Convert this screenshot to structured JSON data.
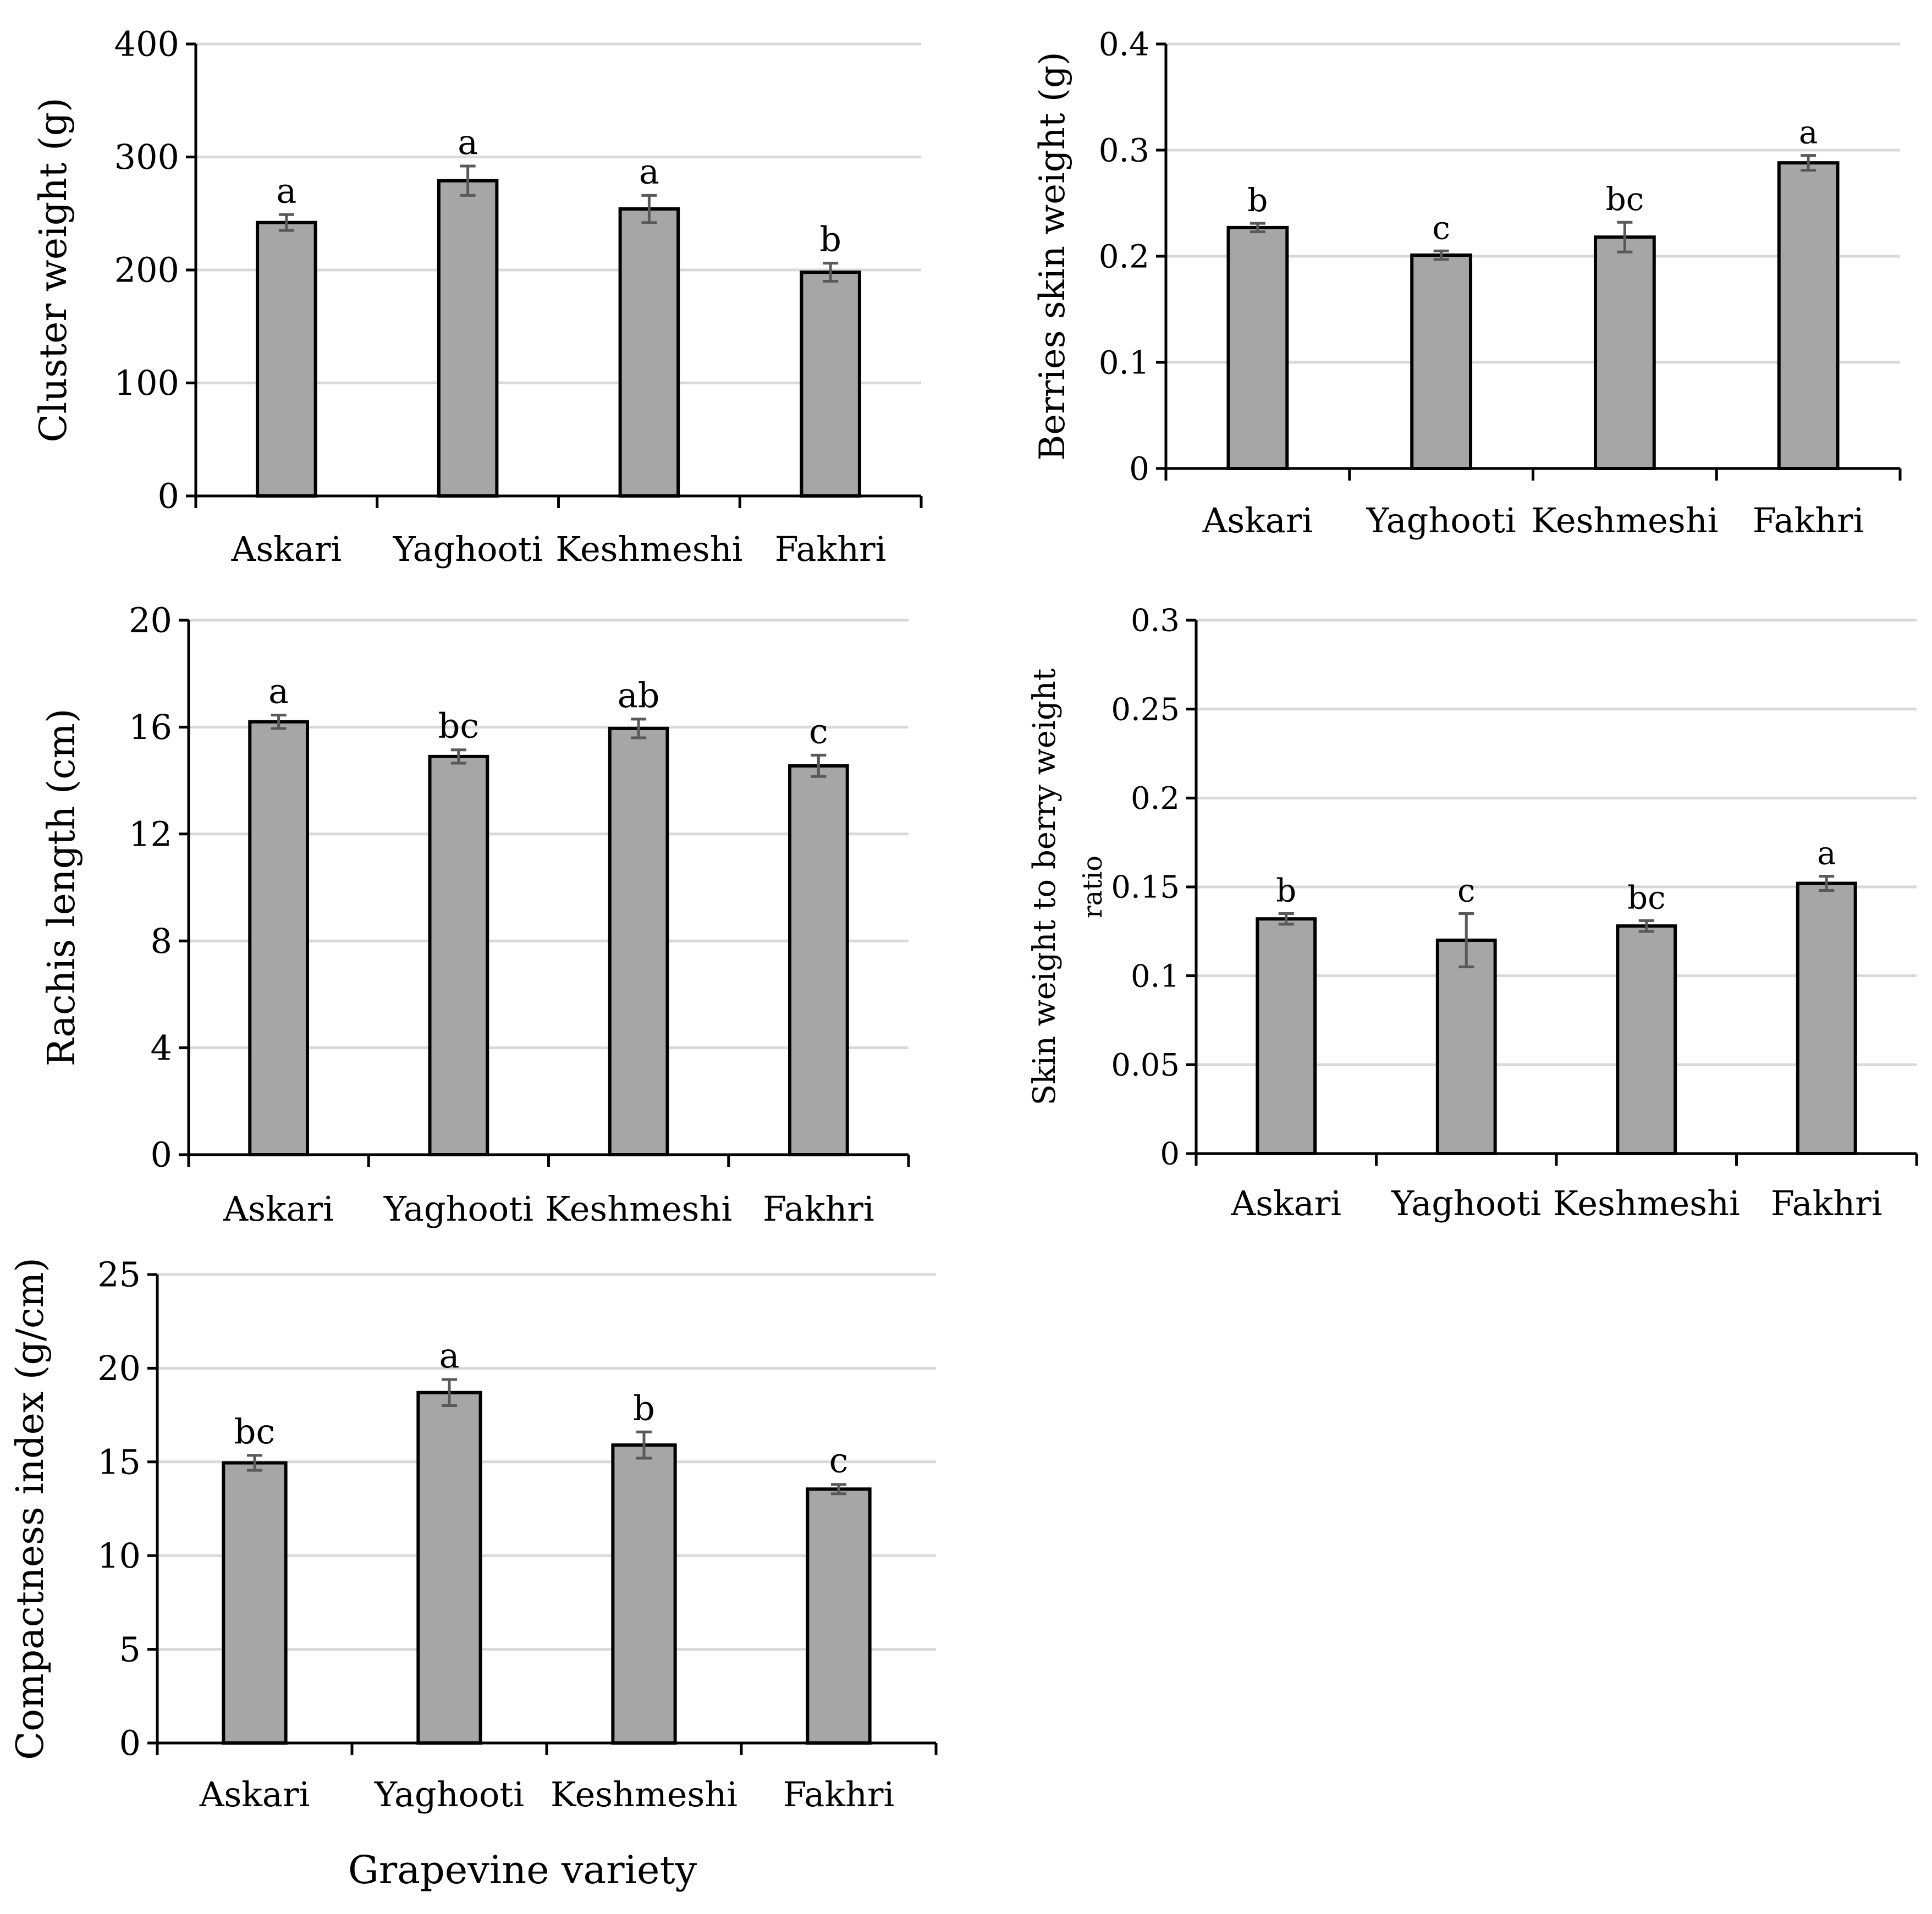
{
  "colors": {
    "bar_fill": "#a6a6a6",
    "bar_stroke": "#000000",
    "grid": "#d9d9d9",
    "error_bar": "#595959",
    "axis": "#000000"
  },
  "figure": {
    "xlabel": "Grapevine variety"
  },
  "chart_data": [
    {
      "id": "cluster-weight",
      "type": "bar",
      "title": "",
      "xlabel": "",
      "ylabel": "Cluster weight (g)",
      "categories": [
        "Askari",
        "Yaghooti",
        "Keshmeshi",
        "Fakhri"
      ],
      "values": [
        242,
        279,
        254,
        198
      ],
      "errors": [
        7,
        13,
        12,
        8
      ],
      "letters": [
        "a",
        "a",
        "a",
        "b"
      ],
      "ylim": [
        0,
        400
      ],
      "yticks": [
        0,
        100,
        200,
        300,
        400
      ],
      "ytick_labels": [
        "0",
        "100",
        "200",
        "300",
        "400"
      ],
      "grid": true
    },
    {
      "id": "berries-skin-weight",
      "type": "bar",
      "title": "",
      "xlabel": "",
      "ylabel": "Berries skin weight (g)",
      "categories": [
        "Askari",
        "Yaghooti",
        "Keshmeshi",
        "Fakhri"
      ],
      "values": [
        0.227,
        0.201,
        0.218,
        0.288
      ],
      "errors": [
        0.004,
        0.004,
        0.014,
        0.007
      ],
      "letters": [
        "b",
        "c",
        "bc",
        "a"
      ],
      "ylim": [
        0,
        0.4
      ],
      "yticks": [
        0,
        0.1,
        0.2,
        0.3,
        0.4
      ],
      "ytick_labels": [
        "0",
        "0.1",
        "0.2",
        "0.3",
        "0.4"
      ],
      "grid": true
    },
    {
      "id": "rachis-length",
      "type": "bar",
      "title": "",
      "xlabel": "",
      "ylabel": "Rachis length (cm)",
      "categories": [
        "Askari",
        "Yaghooti",
        "Keshmeshi",
        "Fakhri"
      ],
      "values": [
        16.2,
        14.9,
        15.95,
        14.55
      ],
      "errors": [
        0.25,
        0.25,
        0.35,
        0.4
      ],
      "letters": [
        "a",
        "bc",
        "ab",
        "c"
      ],
      "ylim": [
        0,
        20
      ],
      "yticks": [
        0,
        4,
        8,
        12,
        16,
        20
      ],
      "ytick_labels": [
        "0",
        "4",
        "8",
        "12",
        "16",
        "20"
      ],
      "grid": true
    },
    {
      "id": "skin-to-berry-ratio",
      "type": "bar",
      "title": "",
      "xlabel": "",
      "ylabel": [
        "Skin weight to berry weight",
        "ratio"
      ],
      "categories": [
        "Askari",
        "Yaghooti",
        "Keshmeshi",
        "Fakhri"
      ],
      "values": [
        0.132,
        0.12,
        0.128,
        0.152
      ],
      "errors": [
        0.003,
        0.015,
        0.003,
        0.004
      ],
      "letters": [
        "b",
        "c",
        "bc",
        "a"
      ],
      "ylim": [
        0,
        0.3
      ],
      "yticks": [
        0,
        0.05,
        0.1,
        0.15,
        0.2,
        0.25,
        0.3
      ],
      "ytick_labels": [
        "0",
        "0.05",
        "0.1",
        "0.15",
        "0.2",
        "0.25",
        "0.3"
      ],
      "grid": true
    },
    {
      "id": "compactness-index",
      "type": "bar",
      "title": "",
      "xlabel": "Grapevine variety",
      "ylabel": "Compactness index (g/cm)",
      "categories": [
        "Askari",
        "Yaghooti",
        "Keshmeshi",
        "Fakhri"
      ],
      "values": [
        14.95,
        18.7,
        15.9,
        13.55
      ],
      "errors": [
        0.4,
        0.7,
        0.7,
        0.25
      ],
      "letters": [
        "bc",
        "a",
        "b",
        "c"
      ],
      "ylim": [
        0,
        25
      ],
      "yticks": [
        0,
        5,
        10,
        15,
        20,
        25
      ],
      "ytick_labels": [
        "0",
        "5",
        "10",
        "15",
        "20",
        "25"
      ],
      "grid": true
    }
  ]
}
